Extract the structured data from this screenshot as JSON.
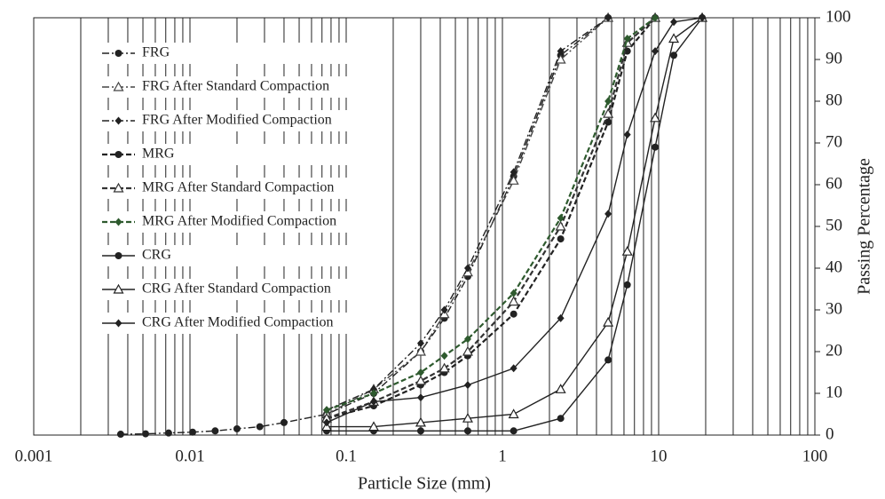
{
  "chart_data": {
    "type": "line",
    "x_label": "Particle Size (mm)",
    "y_label": "Passing Percentage",
    "xscale": "log",
    "xlim": [
      0.001,
      100
    ],
    "xticks": [
      0.001,
      0.01,
      0.1,
      1,
      10,
      100
    ],
    "ylim": [
      0,
      100
    ],
    "yticks": [
      0,
      10,
      20,
      30,
      40,
      50,
      60,
      70,
      80,
      90,
      100
    ],
    "y_axis_side": "right",
    "grid": true,
    "legend": "upper left",
    "series": [
      {
        "name": "FRG",
        "color": "#222222",
        "dash": "dashdot",
        "marker": "circle",
        "x": [
          0.0036,
          0.0052,
          0.0073,
          0.0104,
          0.0145,
          0.02,
          0.028,
          0.04,
          0.075,
          0.15,
          0.3,
          0.425,
          0.6,
          1.18,
          2.36,
          4.75
        ],
        "values": [
          0.2,
          0.3,
          0.5,
          0.7,
          1,
          1.5,
          2,
          3,
          5,
          10,
          20,
          28,
          38,
          62,
          91,
          100
        ]
      },
      {
        "name": "FRG After Standard Compaction",
        "color": "#444444",
        "dash": "dashdot",
        "marker": "triangle",
        "x": [
          0.075,
          0.15,
          0.3,
          0.425,
          0.6,
          1.18,
          2.36,
          4.75
        ],
        "values": [
          5,
          11,
          20,
          29,
          39,
          61,
          90,
          100
        ]
      },
      {
        "name": "FRG After Modified Compaction",
        "color": "#222222",
        "dash": "dashdot",
        "marker": "diamond",
        "x": [
          0.075,
          0.15,
          0.3,
          0.425,
          0.6,
          1.18,
          2.36,
          4.75
        ],
        "values": [
          6,
          11,
          22,
          30,
          40,
          63,
          92,
          100
        ]
      },
      {
        "name": "MRG",
        "color": "#222222",
        "dash": "dashed",
        "marker": "circle",
        "x": [
          0.075,
          0.15,
          0.3,
          0.425,
          0.6,
          1.18,
          2.36,
          4.75,
          6.3,
          9.5
        ],
        "values": [
          4,
          7,
          12,
          15,
          19,
          29,
          47,
          75,
          92,
          100
        ]
      },
      {
        "name": "MRG After Standard Compaction",
        "color": "#333333",
        "dash": "dashed",
        "marker": "triangle",
        "x": [
          0.075,
          0.15,
          0.3,
          0.425,
          0.6,
          1.18,
          2.36,
          4.75,
          6.3,
          9.5
        ],
        "values": [
          4,
          8,
          13,
          16,
          20,
          32,
          50,
          77,
          94,
          100
        ]
      },
      {
        "name": "MRG After Modified Compaction",
        "color": "#2e5a2e",
        "dash": "dashed",
        "marker": "diamond",
        "x": [
          0.075,
          0.15,
          0.3,
          0.425,
          0.6,
          1.18,
          2.36,
          4.75,
          6.3,
          9.5
        ],
        "values": [
          6,
          10,
          15,
          19,
          23,
          34,
          52,
          80,
          95,
          100
        ]
      },
      {
        "name": "CRG",
        "color": "#222222",
        "dash": "solid",
        "marker": "circle",
        "x": [
          0.075,
          0.15,
          0.3,
          0.6,
          1.18,
          2.36,
          4.75,
          6.3,
          9.5,
          12.5,
          19
        ],
        "values": [
          1,
          1,
          1,
          1,
          1,
          4,
          18,
          36,
          69,
          91,
          100
        ]
      },
      {
        "name": "CRG After Standard Compaction",
        "color": "#222222",
        "dash": "solid",
        "marker": "triangle",
        "x": [
          0.075,
          0.15,
          0.3,
          0.6,
          1.18,
          2.36,
          4.75,
          6.3,
          9.5,
          12.5,
          19
        ],
        "values": [
          2,
          2,
          3,
          4,
          5,
          11,
          27,
          44,
          76,
          95,
          100
        ]
      },
      {
        "name": "CRG After Modified Compaction",
        "color": "#222222",
        "dash": "solid",
        "marker": "diamond",
        "x": [
          0.075,
          0.15,
          0.3,
          0.6,
          1.18,
          2.36,
          4.75,
          6.3,
          9.5,
          12.5,
          19
        ],
        "values": [
          3,
          8,
          9,
          12,
          16,
          28,
          53,
          72,
          92,
          99,
          100
        ]
      }
    ]
  }
}
